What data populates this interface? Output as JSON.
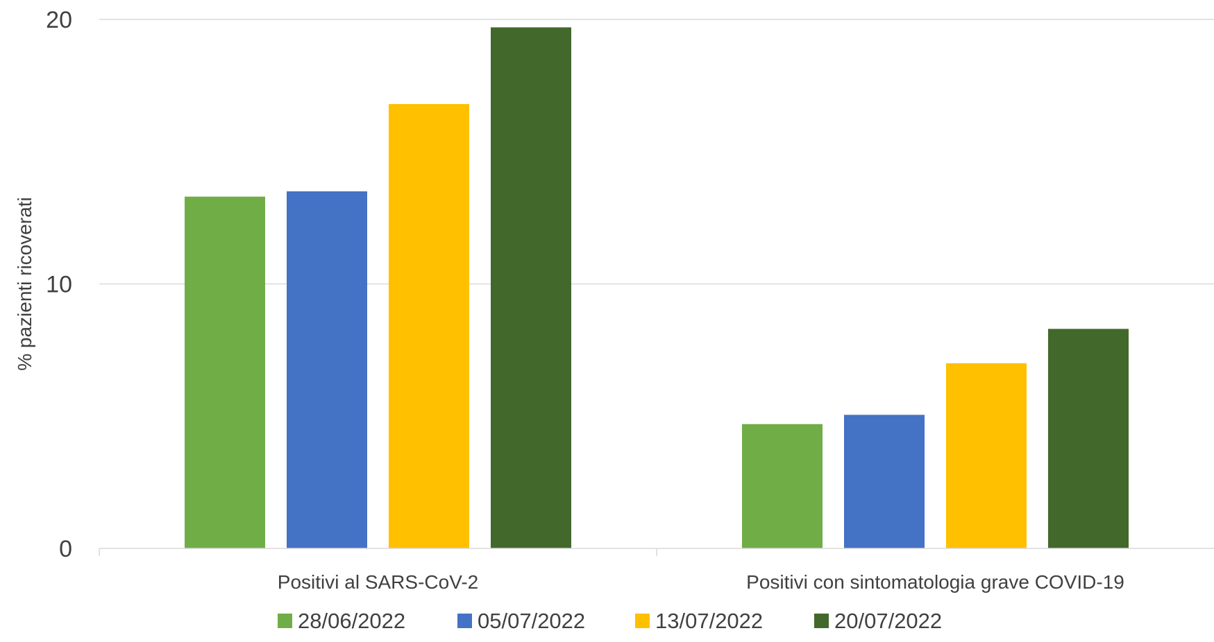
{
  "chart_data": {
    "type": "bar",
    "ylabel": "% pazienti ricoverati",
    "ylim": [
      0,
      20
    ],
    "yticks": [
      0,
      10,
      20
    ],
    "grid": true,
    "legend_position": "bottom",
    "categories": [
      "Positivi al SARS-CoV-2",
      "Positivi con sintomatologia grave COVID-19"
    ],
    "series": [
      {
        "name": "28/06/2022",
        "color": "#70ad47",
        "values": [
          13.3,
          4.7
        ]
      },
      {
        "name": "05/07/2022",
        "color": "#4472c4",
        "values": [
          13.5,
          5.05
        ]
      },
      {
        "name": "13/07/2022",
        "color": "#ffc000",
        "values": [
          16.8,
          7.0
        ]
      },
      {
        "name": "20/07/2022",
        "color": "#43682b",
        "values": [
          19.7,
          8.3
        ]
      }
    ]
  }
}
